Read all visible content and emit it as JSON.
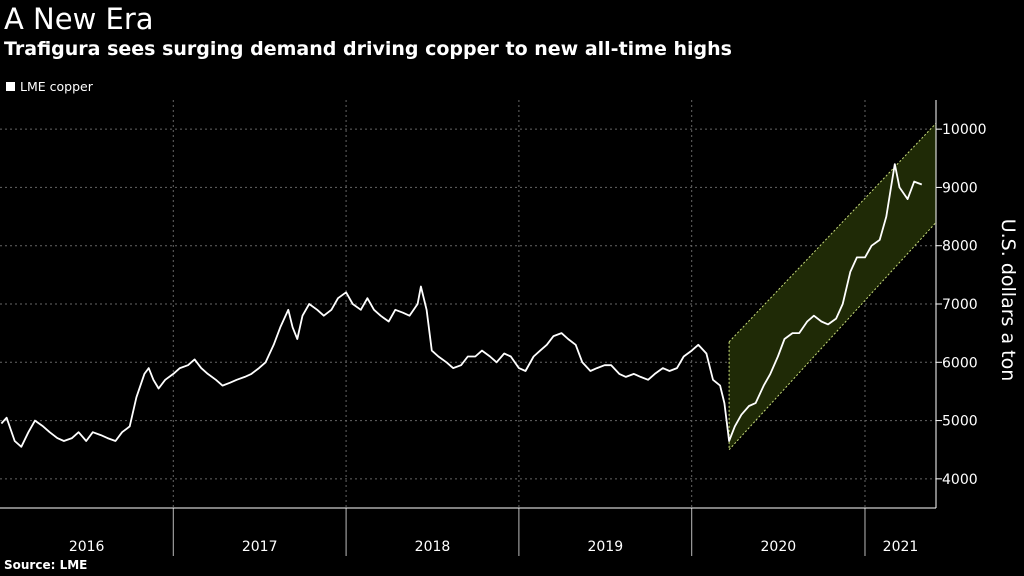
{
  "title": "A New Era",
  "subtitle": "Trafigura sees surging demand driving copper to new all-time highs",
  "source": "Source: LME",
  "colors": {
    "background": "#000000",
    "line": "#ffffff",
    "channel_fill": "#1f2a06",
    "channel_edge": "#c8dc7a",
    "grid": "#666666"
  },
  "chart_data": {
    "type": "line",
    "title": "",
    "legend": {
      "position": "top-left",
      "entries": [
        "LME copper"
      ]
    },
    "ylabel": "U.S. dollars a ton",
    "ylim": [
      3500,
      10500
    ],
    "yticks": [
      4000,
      5000,
      6000,
      7000,
      8000,
      9000,
      10000
    ],
    "xlim": [
      "2016-01-01",
      "2021-05-31"
    ],
    "xticks": [
      "2016",
      "2017",
      "2018",
      "2019",
      "2020",
      "2021"
    ],
    "grid": true,
    "annotation": {
      "type": "trend-channel",
      "start": "2020-03-20",
      "end": "2021-05-31",
      "upper": [
        6350,
        10100
      ],
      "lower": [
        4500,
        8400
      ]
    },
    "series": [
      {
        "name": "LME copper",
        "x": [
          "2016-01-04",
          "2016-01-15",
          "2016-02-01",
          "2016-02-15",
          "2016-03-01",
          "2016-03-15",
          "2016-04-01",
          "2016-04-15",
          "2016-05-01",
          "2016-05-15",
          "2016-06-01",
          "2016-06-15",
          "2016-07-01",
          "2016-07-15",
          "2016-08-01",
          "2016-08-15",
          "2016-09-01",
          "2016-09-15",
          "2016-10-01",
          "2016-10-15",
          "2016-11-01",
          "2016-11-10",
          "2016-11-20",
          "2016-12-01",
          "2016-12-15",
          "2017-01-01",
          "2017-01-15",
          "2017-02-01",
          "2017-02-15",
          "2017-03-01",
          "2017-03-15",
          "2017-04-01",
          "2017-04-15",
          "2017-05-01",
          "2017-05-15",
          "2017-06-01",
          "2017-06-15",
          "2017-07-01",
          "2017-07-15",
          "2017-08-01",
          "2017-08-15",
          "2017-09-01",
          "2017-09-10",
          "2017-09-20",
          "2017-10-01",
          "2017-10-15",
          "2017-11-01",
          "2017-11-15",
          "2017-12-01",
          "2017-12-15",
          "2018-01-01",
          "2018-01-15",
          "2018-02-01",
          "2018-02-15",
          "2018-03-01",
          "2018-03-15",
          "2018-04-01",
          "2018-04-15",
          "2018-05-01",
          "2018-05-15",
          "2018-06-01",
          "2018-06-08",
          "2018-06-20",
          "2018-07-01",
          "2018-07-15",
          "2018-08-01",
          "2018-08-15",
          "2018-09-01",
          "2018-09-15",
          "2018-10-01",
          "2018-10-15",
          "2018-11-01",
          "2018-11-15",
          "2018-12-01",
          "2018-12-15",
          "2019-01-01",
          "2019-01-15",
          "2019-02-01",
          "2019-02-15",
          "2019-03-01",
          "2019-03-15",
          "2019-04-01",
          "2019-04-15",
          "2019-05-01",
          "2019-05-15",
          "2019-06-01",
          "2019-06-15",
          "2019-07-01",
          "2019-07-15",
          "2019-08-01",
          "2019-08-15",
          "2019-09-01",
          "2019-09-15",
          "2019-10-01",
          "2019-10-15",
          "2019-11-01",
          "2019-11-15",
          "2019-12-01",
          "2019-12-15",
          "2020-01-01",
          "2020-01-15",
          "2020-02-01",
          "2020-02-15",
          "2020-03-01",
          "2020-03-10",
          "2020-03-20",
          "2020-04-01",
          "2020-04-15",
          "2020-05-01",
          "2020-05-15",
          "2020-06-01",
          "2020-06-15",
          "2020-07-01",
          "2020-07-15",
          "2020-08-01",
          "2020-08-15",
          "2020-09-01",
          "2020-09-15",
          "2020-10-01",
          "2020-10-15",
          "2020-11-01",
          "2020-11-15",
          "2020-12-01",
          "2020-12-15",
          "2021-01-01",
          "2021-01-15",
          "2021-02-01",
          "2021-02-15",
          "2021-02-25",
          "2021-03-05",
          "2021-03-15",
          "2021-04-01",
          "2021-04-15",
          "2021-05-01"
        ],
        "values": [
          4950,
          5050,
          4650,
          4550,
          4800,
          5000,
          4900,
          4800,
          4700,
          4650,
          4700,
          4800,
          4650,
          4800,
          4750,
          4700,
          4650,
          4800,
          4900,
          5400,
          5800,
          5900,
          5700,
          5550,
          5700,
          5800,
          5900,
          5950,
          6050,
          5900,
          5800,
          5700,
          5600,
          5650,
          5700,
          5750,
          5800,
          5900,
          6000,
          6300,
          6600,
          6900,
          6600,
          6400,
          6800,
          7000,
          6900,
          6800,
          6900,
          7100,
          7200,
          7000,
          6900,
          7100,
          6900,
          6800,
          6700,
          6900,
          6850,
          6800,
          7000,
          7300,
          6900,
          6200,
          6100,
          6000,
          5900,
          5950,
          6100,
          6100,
          6200,
          6100,
          6000,
          6150,
          6100,
          5900,
          5850,
          6100,
          6200,
          6300,
          6450,
          6500,
          6400,
          6300,
          6000,
          5850,
          5900,
          5950,
          5950,
          5800,
          5750,
          5800,
          5750,
          5700,
          5800,
          5900,
          5850,
          5900,
          6100,
          6200,
          6300,
          6150,
          5700,
          5600,
          5300,
          4650,
          4900,
          5100,
          5250,
          5300,
          5600,
          5800,
          6100,
          6400,
          6500,
          6500,
          6700,
          6800,
          6700,
          6650,
          6750,
          7000,
          7550,
          7800,
          7800,
          8000,
          8100,
          8500,
          9000,
          9400,
          9000,
          8800,
          9100,
          9050
        ]
      }
    ]
  }
}
